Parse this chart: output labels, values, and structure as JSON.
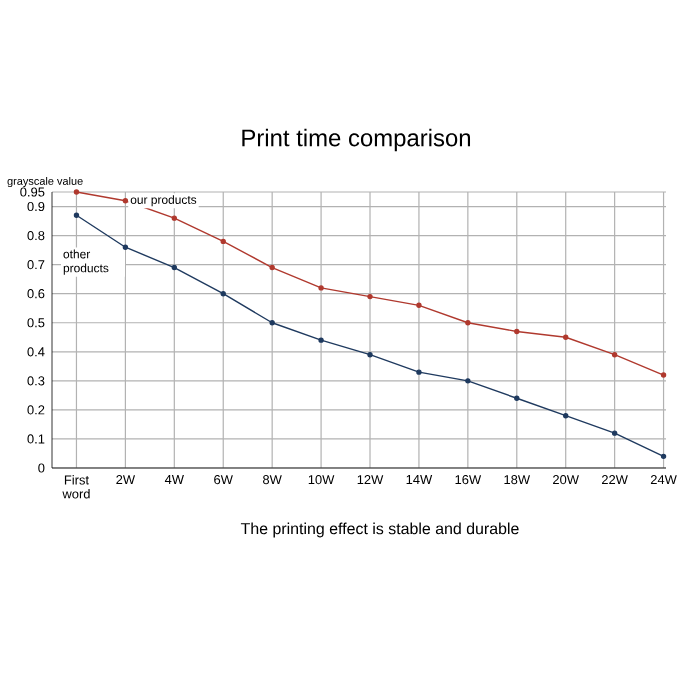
{
  "chart_data": {
    "type": "line",
    "title": "Print time comparison",
    "ylabel": "grayscale value",
    "categories": [
      "First word",
      "2W",
      "4W",
      "6W",
      "8W",
      "10W",
      "12W",
      "14W",
      "16W",
      "18W",
      "20W",
      "22W",
      "24W"
    ],
    "series": [
      {
        "name": "our products",
        "color": "#b0392e",
        "values": [
          0.95,
          0.92,
          0.86,
          0.78,
          0.69,
          0.62,
          0.59,
          0.56,
          0.5,
          0.47,
          0.45,
          0.39,
          0.32
        ]
      },
      {
        "name": "other products",
        "color": "#1f3a5f",
        "values": [
          0.87,
          0.76,
          0.69,
          0.6,
          0.5,
          0.44,
          0.39,
          0.33,
          0.3,
          0.24,
          0.18,
          0.12,
          0.04
        ]
      }
    ],
    "ylim": [
      0,
      0.95
    ],
    "yticks": [
      0,
      0.1,
      0.2,
      0.3,
      0.4,
      0.5,
      0.6,
      0.7,
      0.8,
      0.9,
      0.95
    ],
    "grid": true,
    "marker": "circle",
    "line_style": "solid",
    "annotations": [
      "The printing effect is stable and durable"
    ]
  }
}
